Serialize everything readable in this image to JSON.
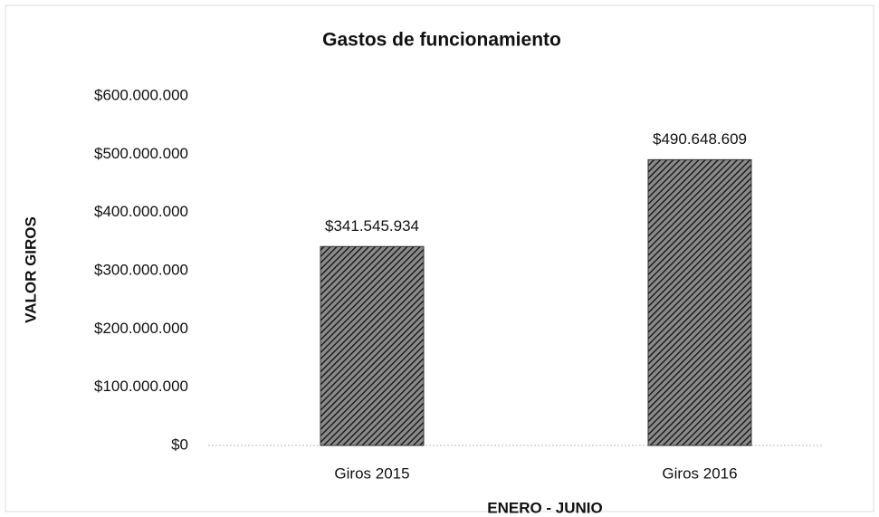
{
  "chart_data": {
    "type": "bar",
    "title": "Gastos de funcionamiento",
    "x_label": "ENERO - JUNIO",
    "y_label": "VALOR GIROS",
    "categories": [
      "Giros 2015",
      "Giros 2016"
    ],
    "values": [
      341545934,
      490648609
    ],
    "value_labels": [
      "$341.545.934",
      "$490.648.609"
    ],
    "color": "#333333",
    "ylim": [
      0,
      600000000
    ],
    "yticks": [
      {
        "value": 0,
        "label": "$0"
      },
      {
        "value": 100000000,
        "label": "$100.000.000"
      },
      {
        "value": 200000000,
        "label": "$200.000.000"
      },
      {
        "value": 300000000,
        "label": "$300.000.000"
      },
      {
        "value": 400000000,
        "label": "$400.000.000"
      },
      {
        "value": 500000000,
        "label": "$500.000.000"
      },
      {
        "value": 600000000,
        "label": "$600.000.000"
      }
    ],
    "grid": false
  }
}
